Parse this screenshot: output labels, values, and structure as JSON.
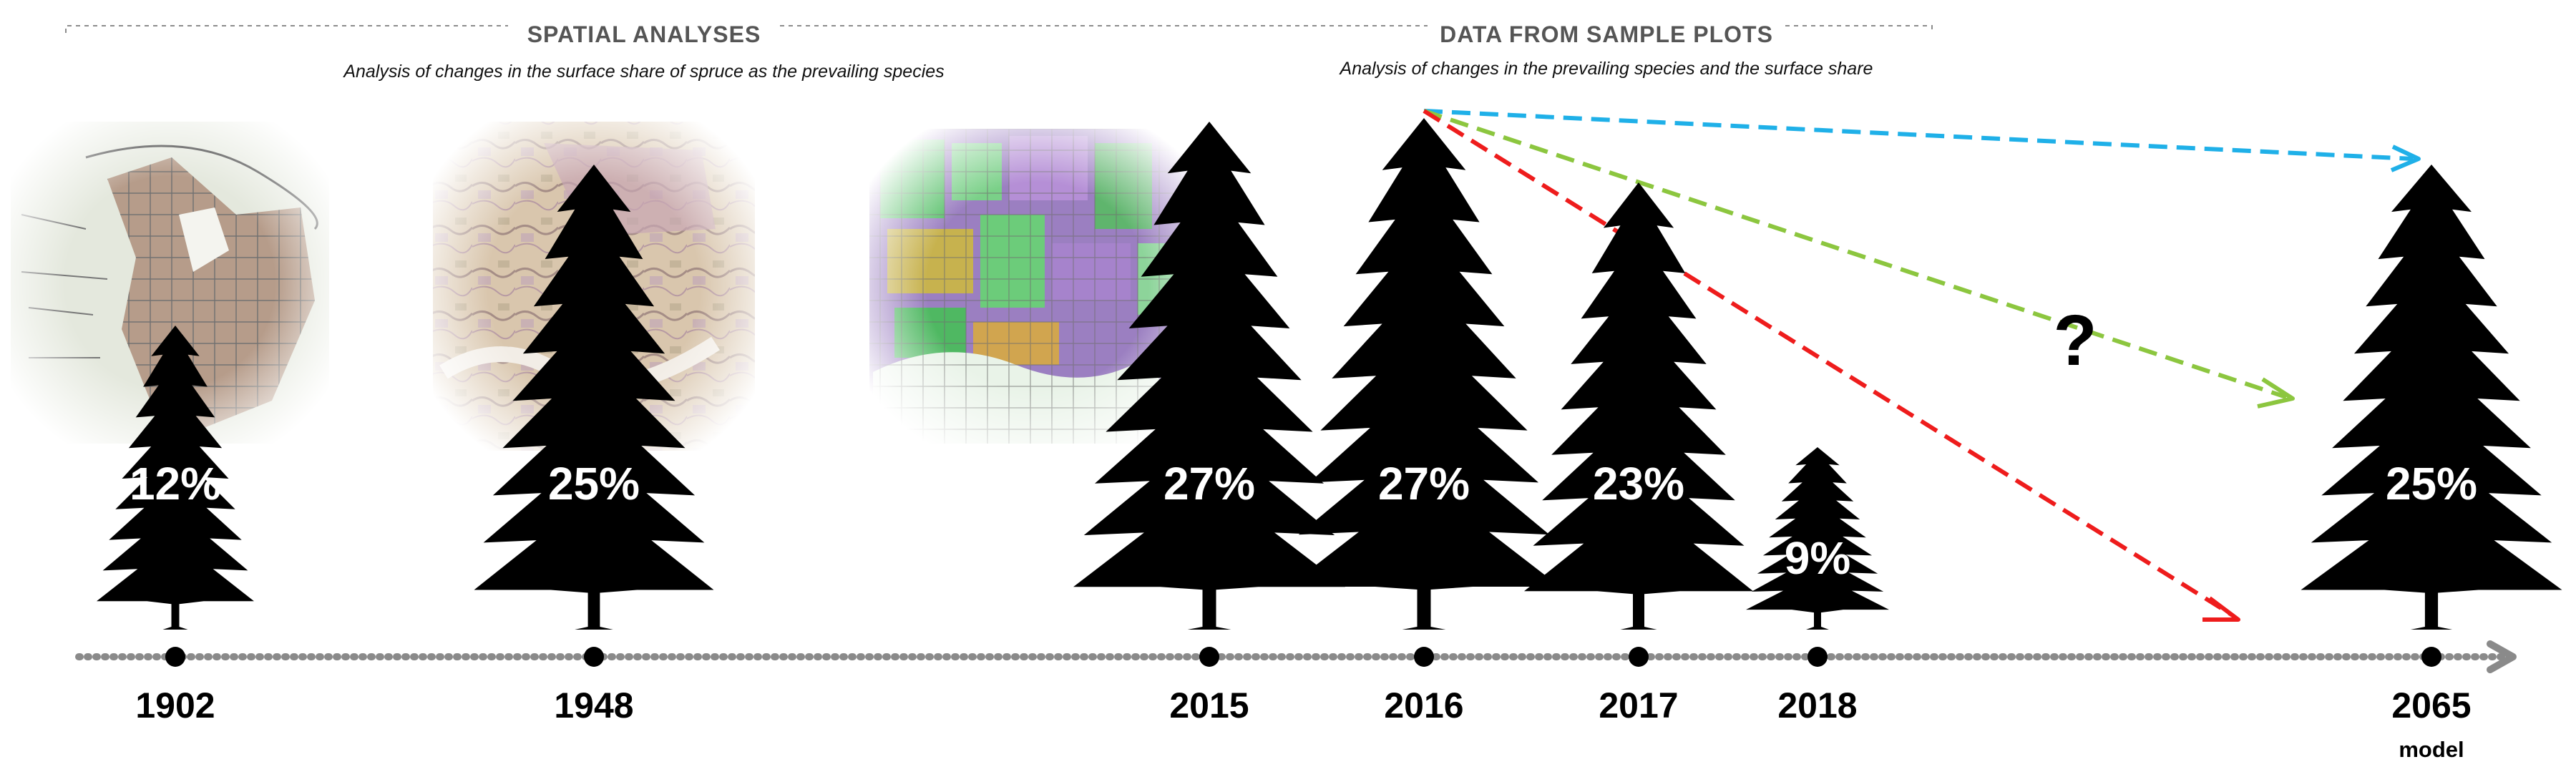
{
  "sections": {
    "spatial": {
      "title": "SPATIAL ANALYSES",
      "subtitle": "Analysis of changes in the surface share of spruce as the prevailing species"
    },
    "plots": {
      "title": "DATA FROM SAMPLE PLOTS",
      "subtitle": "Analysis of changes in the prevailing species and the surface share"
    }
  },
  "timeline": [
    {
      "year": "1902",
      "share": "12%",
      "share_value": 12,
      "note": ""
    },
    {
      "year": "1948",
      "share": "25%",
      "share_value": 25,
      "note": ""
    },
    {
      "year": "2015",
      "share": "27%",
      "share_value": 27,
      "note": ""
    },
    {
      "year": "2016",
      "share": "27%",
      "share_value": 27,
      "note": ""
    },
    {
      "year": "2017",
      "share": "23%",
      "share_value": 23,
      "note": ""
    },
    {
      "year": "2018",
      "share": "9%",
      "share_value": 9,
      "note": ""
    },
    {
      "year": "2065",
      "share": "25%",
      "share_value": 25,
      "note": "model"
    }
  ],
  "question_mark": "?",
  "colors": {
    "tree": "#000000",
    "timeline": "#8a8a8a",
    "share_label": "#ffffff",
    "share_label_alert": "#ff0000",
    "arrow_blue": "#1fb0e8",
    "arrow_green": "#8cc63f",
    "arrow_red": "#ee1c1c",
    "header_text": "#555555"
  }
}
